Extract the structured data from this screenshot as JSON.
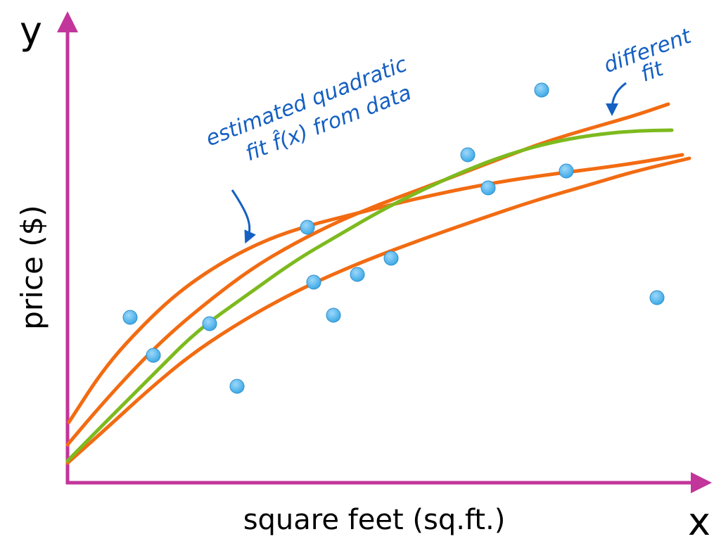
{
  "axes": {
    "y_symbol": "y",
    "x_symbol": "x",
    "y_label": "price ($)",
    "x_label": "square feet (sq.ft.)"
  },
  "annotations": {
    "estimated_line1": "estimated quadratic",
    "estimated_line2": "fit   f̂(x) from data",
    "different_line1": "different",
    "different_line2": "fit"
  },
  "colors": {
    "axis": "#C2359A",
    "orange_fit": "#F26B12",
    "green_fit": "#7DBA1E",
    "point_fill": "#3BA9E6",
    "annotation_ink": "#1560C2"
  },
  "chart_data": {
    "type": "scatter",
    "points": [
      [
        185,
        451
      ],
      [
        218,
        505
      ],
      [
        298,
        460
      ],
      [
        337,
        549
      ],
      [
        437,
        323
      ],
      [
        446,
        401
      ],
      [
        474,
        448
      ],
      [
        508,
        390
      ],
      [
        556,
        367
      ],
      [
        665,
        220
      ],
      [
        694,
        267
      ],
      [
        770,
        128
      ],
      [
        805,
        243
      ],
      [
        934,
        423
      ]
    ],
    "orange_curves": [
      {
        "name": "",
        "points": [
          [
            98,
            600
          ],
          [
            150,
            520
          ],
          [
            210,
            455
          ],
          [
            260,
            410
          ],
          [
            320,
            370
          ],
          [
            380,
            340
          ],
          [
            440,
            320
          ],
          [
            500,
            305
          ],
          [
            560,
            290
          ],
          [
            620,
            276
          ],
          [
            700,
            260
          ],
          [
            780,
            248
          ],
          [
            860,
            238
          ],
          [
            920,
            229
          ],
          [
            970,
            220
          ]
        ]
      },
      {
        "name": "",
        "points": [
          [
            96,
            632
          ],
          [
            140,
            580
          ],
          [
            190,
            525
          ],
          [
            240,
            475
          ],
          [
            300,
            425
          ],
          [
            360,
            380
          ],
          [
            420,
            345
          ],
          [
            480,
            315
          ],
          [
            540,
            290
          ],
          [
            600,
            268
          ],
          [
            660,
            245
          ],
          [
            720,
            222
          ],
          [
            780,
            200
          ],
          [
            840,
            182
          ],
          [
            900,
            165
          ],
          [
            950,
            148
          ]
        ]
      },
      {
        "name": "",
        "points": [
          [
            96,
            658
          ],
          [
            150,
            610
          ],
          [
            210,
            555
          ],
          [
            270,
            505
          ],
          [
            330,
            465
          ],
          [
            390,
            430
          ],
          [
            450,
            400
          ],
          [
            520,
            370
          ],
          [
            600,
            340
          ],
          [
            680,
            312
          ],
          [
            760,
            285
          ],
          [
            840,
            262
          ],
          [
            900,
            244
          ],
          [
            980,
            225
          ]
        ]
      }
    ],
    "green_curve": {
      "name": "",
      "points": [
        [
          96,
          655
        ],
        [
          150,
          600
        ],
        [
          220,
          530
        ],
        [
          280,
          470
        ],
        [
          350,
          420
        ],
        [
          420,
          370
        ],
        [
          480,
          335
        ],
        [
          540,
          300
        ],
        [
          600,
          270
        ],
        [
          660,
          243
        ],
        [
          720,
          220
        ],
        [
          780,
          203
        ],
        [
          840,
          192
        ],
        [
          900,
          186
        ],
        [
          955,
          185
        ]
      ]
    }
  }
}
